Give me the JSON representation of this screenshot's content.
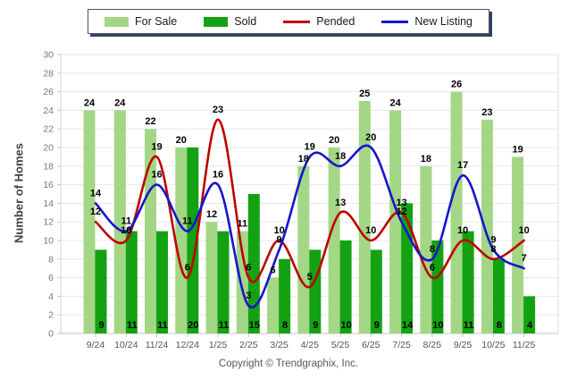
{
  "legend": {
    "items": [
      {
        "label": "For Sale",
        "type": "bar",
        "color": "#A3D786"
      },
      {
        "label": "Sold",
        "type": "bar",
        "color": "#12A212"
      },
      {
        "label": "Pended",
        "type": "line",
        "color": "#C00000"
      },
      {
        "label": "New Listing",
        "type": "line",
        "color": "#1515CE"
      }
    ]
  },
  "y_axis": {
    "title": "Number of Homes",
    "min": 0,
    "max": 30,
    "step": 2
  },
  "footer": {
    "copyright": "Copyright © Trendgraphix, Inc."
  },
  "colors": {
    "for_sale": "#A3D786",
    "sold": "#12A212",
    "pended": "#C00000",
    "new_listing": "#1515CE",
    "gridline": "#E8E8E8",
    "axis": "#C4C4C4",
    "tick_text": "#777777",
    "month_text": "#4a5568",
    "data_label": "#000000"
  },
  "chart_data": {
    "type": "bar",
    "subtype": "grouped bars with smoothed overlay lines",
    "title": "",
    "xlabel": "",
    "ylabel": "Number of Homes",
    "ylim": [
      0,
      30
    ],
    "ytick_step": 2,
    "grid": true,
    "legend_position": "top",
    "categories": [
      "9/24",
      "10/24",
      "11/24",
      "12/24",
      "1/25",
      "2/25",
      "3/25",
      "4/25",
      "5/25",
      "6/25",
      "7/25",
      "8/25",
      "9/25",
      "10/25",
      "11/25"
    ],
    "series": [
      {
        "name": "For Sale",
        "type": "bar",
        "color": "#A3D786",
        "values": [
          24,
          24,
          22,
          20,
          12,
          11,
          6,
          18,
          20,
          25,
          24,
          18,
          26,
          23,
          19
        ]
      },
      {
        "name": "Sold",
        "type": "bar",
        "color": "#12A212",
        "values": [
          9,
          11,
          11,
          20,
          11,
          15,
          8,
          9,
          10,
          9,
          14,
          10,
          11,
          8,
          4
        ]
      },
      {
        "name": "Pended",
        "type": "line",
        "color": "#C00000",
        "values": [
          12,
          10,
          19,
          6,
          23,
          6,
          10,
          5,
          13,
          10,
          13,
          6,
          10,
          8,
          10
        ]
      },
      {
        "name": "New Listing",
        "type": "line",
        "color": "#1515CE",
        "values": [
          14,
          11,
          16,
          11,
          16,
          3,
          9,
          19,
          18,
          20,
          12,
          8,
          17,
          9,
          7
        ]
      }
    ]
  }
}
